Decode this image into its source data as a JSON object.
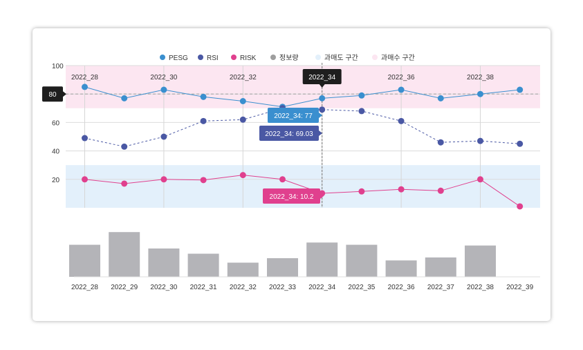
{
  "chart_data": {
    "type": "line",
    "x": [
      "2022_28",
      "2022_29",
      "2022_30",
      "2022_31",
      "2022_32",
      "2022_33",
      "2022_34",
      "2022_35",
      "2022_36",
      "2022_37",
      "2022_38",
      "2022_39"
    ],
    "top_ticks": [
      "2022_28",
      "2022_30",
      "2022_32",
      "2022_34",
      "2022_36",
      "2022_38"
    ],
    "yticks": [
      20,
      40,
      60,
      100
    ],
    "ylim": [
      0,
      100
    ],
    "legend": [
      {
        "name": "PESG",
        "color": "#3a8fcf",
        "kind": "dot"
      },
      {
        "name": "RSI",
        "color": "#4a58a4",
        "kind": "dot"
      },
      {
        "name": "RISK",
        "color": "#e0408e",
        "kind": "dot"
      },
      {
        "name": "정보량",
        "color": "#9e9e9e",
        "kind": "dot"
      },
      {
        "name": "과매도 구간",
        "color": "#e3f0fb",
        "kind": "band"
      },
      {
        "name": "과매수 구간",
        "color": "#fce6f1",
        "kind": "band"
      }
    ],
    "bands": [
      {
        "name": "과매수 구간",
        "from": 70,
        "to": 100,
        "color": "#fce6f1"
      },
      {
        "name": "과매도 구간",
        "from": 0,
        "to": 30,
        "color": "#e3f0fb"
      }
    ],
    "reference_line": {
      "value": 80,
      "label": "80"
    },
    "series": [
      {
        "name": "PESG",
        "color": "#3a8fcf",
        "values": [
          85,
          77,
          83,
          78,
          75,
          71,
          77,
          79,
          83,
          77,
          80,
          83
        ]
      },
      {
        "name": "RSI",
        "color": "#4a58a4",
        "values": [
          49,
          43,
          50,
          61,
          62,
          70,
          69.03,
          68,
          61,
          46,
          47,
          45
        ]
      },
      {
        "name": "RISK",
        "color": "#e0408e",
        "values": [
          20,
          17,
          20,
          19.5,
          23,
          20,
          10.2,
          11.5,
          13,
          12,
          20,
          1
        ]
      }
    ],
    "info_series": {
      "name": "정보량",
      "color": "#b4b4b8",
      "values": [
        43,
        60,
        38,
        31,
        19,
        25,
        46,
        43,
        22,
        26,
        42,
        0
      ]
    },
    "hover": {
      "index": 6,
      "x_label": "2022_34",
      "tooltips": [
        {
          "series": "PESG",
          "text": "2022_34: 77",
          "color": "#3a8fcf"
        },
        {
          "series": "RSI",
          "text": "2022_34: 69.03",
          "color": "#4a58a4"
        },
        {
          "series": "RISK",
          "text": "2022_34: 10.2",
          "color": "#e0408e"
        }
      ]
    }
  }
}
